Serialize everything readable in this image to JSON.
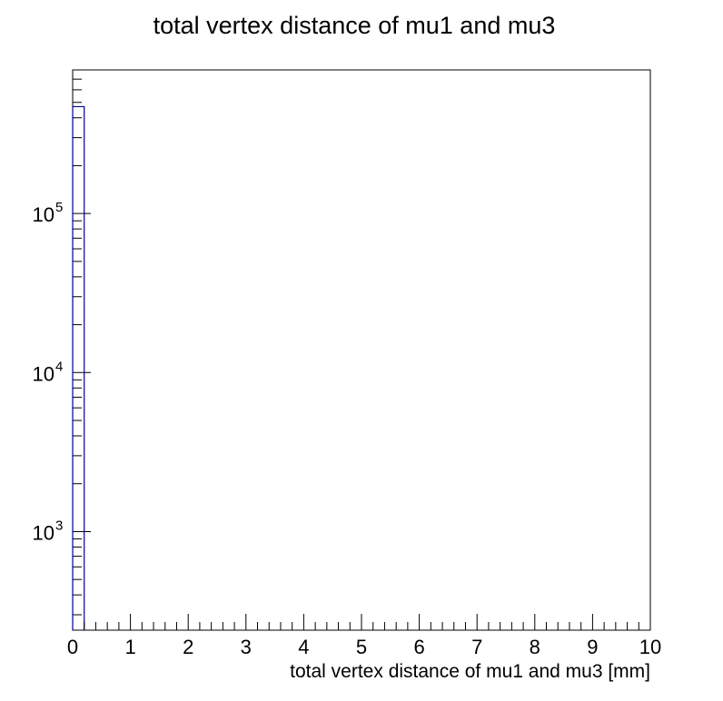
{
  "chart_data": {
    "type": "histogram",
    "title": "total vertex distance of mu1 and mu3",
    "xlabel": "total vertex distance of mu1 and mu3 [mm]",
    "ylabel": "",
    "xlim": [
      0,
      10
    ],
    "ylim": [
      240,
      800000
    ],
    "y_scale": "log",
    "x_ticks": [
      "0",
      "1",
      "2",
      "3",
      "4",
      "5",
      "6",
      "7",
      "8",
      "9",
      "10"
    ],
    "y_ticks": [
      {
        "base": "10",
        "exp": "3",
        "value": 1000
      },
      {
        "base": "10",
        "exp": "4",
        "value": 10000
      },
      {
        "base": "10",
        "exp": "5",
        "value": 100000
      }
    ],
    "bins": [
      {
        "x_low": 0,
        "x_high": 0.2,
        "value": 470000
      }
    ],
    "line_color": "#000099",
    "grid": false,
    "legend": "none"
  }
}
